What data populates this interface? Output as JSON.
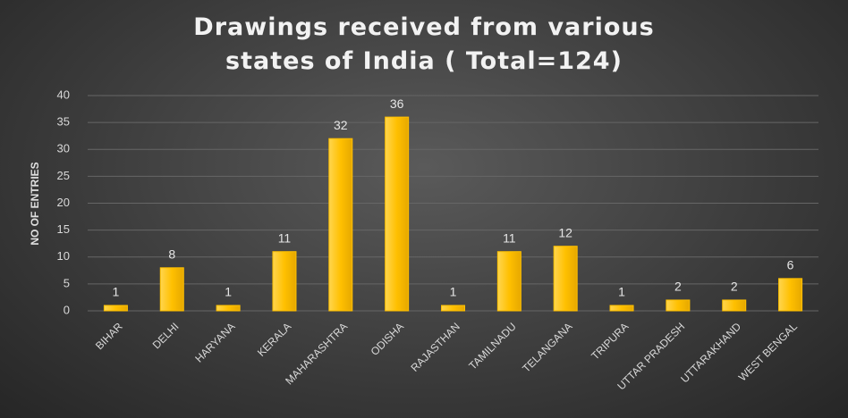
{
  "chart_data": {
    "type": "bar",
    "title": "Drawings received from various states of India ( Total=124)",
    "y_label": "NO OF ENTRIES",
    "categories": [
      "BIHAR",
      "DELHI",
      "HARYANA",
      "KERALA",
      "MAHARASHTRA",
      "ODISHA",
      "RAJASTHAN",
      "TAMILNADU",
      "TELANGANA",
      "TRIPURA",
      "UTTAR PRADESH",
      "UTTARAKHAND",
      "WEST BENGAL"
    ],
    "values": [
      1,
      8,
      1,
      11,
      32,
      36,
      1,
      11,
      12,
      1,
      2,
      2,
      6
    ],
    "color": "#ffc000",
    "ylim": [
      0,
      40
    ],
    "yticks": [
      0,
      5,
      10,
      15,
      20,
      25,
      30,
      35,
      40
    ],
    "grid": true,
    "data_labels": true
  }
}
